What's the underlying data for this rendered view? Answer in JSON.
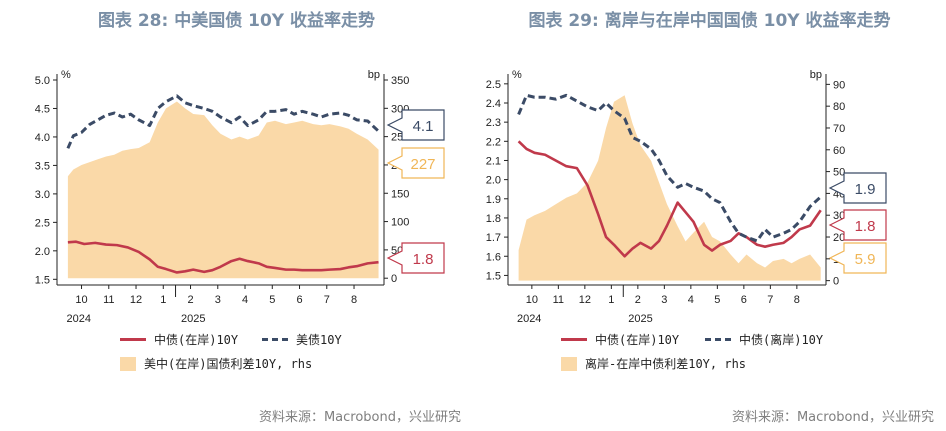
{
  "charts": [
    {
      "title": "图表 28: 中美国债 10Y 收益率走势",
      "source": "资料来源：Macrobond，兴业研究",
      "legend": [
        "中债(在岸)10Y",
        "美债10Y",
        "美中(在岸)国债利差10Y, rhs"
      ],
      "year_labels": [
        "2024",
        "2025"
      ]
    },
    {
      "title": "图表 29: 离岸与在岸中国国债 10Y 收益率走势",
      "source": "资料来源：Macrobond，兴业研究",
      "legend": [
        "中债(在岸)10Y",
        "中债(离岸)10Y",
        "离岸-在岸中债利差10Y, rhs"
      ],
      "year_labels": [
        "2024",
        "2025"
      ]
    }
  ],
  "chart_data": [
    {
      "type": "line",
      "title": "图表 28: 中美国债 10Y 收益率走势",
      "x_tick_labels": [
        "10",
        "11",
        "12",
        "1",
        "2",
        "3",
        "4",
        "5",
        "6",
        "7",
        "8"
      ],
      "y_left": {
        "unit": "%",
        "ticks": [
          "1.5",
          "2.0",
          "2.5",
          "3.0",
          "3.5",
          "4.0",
          "4.5",
          "5.0"
        ],
        "lim": [
          1.4,
          5.0
        ]
      },
      "y_right": {
        "unit": "bp",
        "ticks": [
          "0",
          "50",
          "100",
          "150",
          "200",
          "250",
          "300",
          "350"
        ],
        "lim": [
          -12,
          350
        ]
      },
      "series": [
        {
          "name": "中债(在岸)10Y",
          "style": "solid",
          "color": "#c0394b",
          "axis": "left",
          "x": [
            9.0,
            9.3,
            9.6,
            10.0,
            10.4,
            10.8,
            11.2,
            11.6,
            12.0,
            12.3,
            12.6,
            13.0,
            13.3,
            13.6,
            14.0,
            14.3,
            14.6,
            15.0,
            15.3,
            15.6,
            16.0,
            16.3,
            16.6,
            17.0,
            17.3,
            17.6,
            18.0,
            18.3,
            18.6,
            19.0,
            19.3,
            19.6,
            20.0,
            20.4
          ],
          "values": [
            2.15,
            2.16,
            2.12,
            2.14,
            2.11,
            2.1,
            2.06,
            1.98,
            1.85,
            1.72,
            1.68,
            1.62,
            1.64,
            1.67,
            1.63,
            1.66,
            1.72,
            1.82,
            1.86,
            1.82,
            1.78,
            1.72,
            1.7,
            1.67,
            1.67,
            1.66,
            1.66,
            1.66,
            1.67,
            1.68,
            1.71,
            1.73,
            1.78,
            1.8
          ],
          "label": "1.8"
        },
        {
          "name": "美债10Y",
          "style": "dashed",
          "color": "#3b4b66",
          "axis": "left",
          "x": [
            9.0,
            9.2,
            9.5,
            9.8,
            10.1,
            10.4,
            10.7,
            11.0,
            11.3,
            11.6,
            12.0,
            12.3,
            12.6,
            13.0,
            13.3,
            13.6,
            14.0,
            14.3,
            14.6,
            15.0,
            15.3,
            15.6,
            16.0,
            16.3,
            16.6,
            17.0,
            17.3,
            17.6,
            18.0,
            18.3,
            18.6,
            19.0,
            19.3,
            19.6,
            20.0,
            20.4
          ],
          "values": [
            3.8,
            4.02,
            4.08,
            4.22,
            4.3,
            4.38,
            4.42,
            4.35,
            4.4,
            4.3,
            4.2,
            4.5,
            4.62,
            4.72,
            4.6,
            4.55,
            4.5,
            4.45,
            4.35,
            4.25,
            4.35,
            4.2,
            4.3,
            4.45,
            4.45,
            4.48,
            4.4,
            4.45,
            4.4,
            4.35,
            4.4,
            4.42,
            4.38,
            4.3,
            4.28,
            4.1
          ],
          "label": "4.1"
        },
        {
          "name": "美中(在岸)国债利差10Y, rhs",
          "style": "area",
          "color": "#fad9a8",
          "axis": "right",
          "x": [
            9.0,
            9.2,
            9.5,
            9.8,
            10.1,
            10.4,
            10.7,
            11.0,
            11.3,
            11.6,
            12.0,
            12.3,
            12.6,
            13.0,
            13.3,
            13.6,
            14.0,
            14.3,
            14.6,
            15.0,
            15.3,
            15.6,
            16.0,
            16.3,
            16.6,
            17.0,
            17.3,
            17.6,
            18.0,
            18.3,
            18.6,
            19.0,
            19.3,
            19.6,
            20.0,
            20.4
          ],
          "values": [
            180,
            192,
            200,
            205,
            210,
            215,
            218,
            225,
            228,
            230,
            240,
            275,
            300,
            312,
            300,
            290,
            288,
            270,
            255,
            245,
            250,
            245,
            252,
            275,
            278,
            272,
            275,
            278,
            272,
            270,
            272,
            268,
            264,
            255,
            245,
            227
          ],
          "label": "227"
        }
      ]
    },
    {
      "type": "line",
      "title": "图表 29: 离岸与在岸中国国债 10Y 收益率走势",
      "x_tick_labels": [
        "10",
        "11",
        "12",
        "1",
        "2",
        "3",
        "4",
        "5",
        "6",
        "7",
        "8"
      ],
      "y_left": {
        "unit": "%",
        "ticks": [
          "1.5",
          "1.6",
          "1.7",
          "1.8",
          "1.9",
          "2.0",
          "2.1",
          "2.2",
          "2.3",
          "2.4",
          "2.5"
        ],
        "lim": [
          1.45,
          2.52
        ]
      },
      "y_right": {
        "unit": "bp",
        "ticks": [
          "0",
          "10",
          "20",
          "30",
          "40",
          "50",
          "60",
          "70",
          "80",
          "90"
        ],
        "lim": [
          -2,
          92
        ]
      },
      "series": [
        {
          "name": "中债(在岸)10Y",
          "style": "solid",
          "color": "#c0394b",
          "axis": "left",
          "x": [
            9.0,
            9.3,
            9.6,
            10.0,
            10.4,
            10.8,
            11.2,
            11.6,
            12.0,
            12.3,
            12.6,
            13.0,
            13.3,
            13.6,
            14.0,
            14.3,
            14.6,
            15.0,
            15.3,
            15.6,
            16.0,
            16.3,
            16.6,
            17.0,
            17.3,
            17.6,
            18.0,
            18.3,
            18.6,
            19.0,
            19.3,
            19.6,
            20.0,
            20.4
          ],
          "values": [
            2.2,
            2.16,
            2.14,
            2.13,
            2.1,
            2.07,
            2.06,
            1.97,
            1.82,
            1.7,
            1.66,
            1.6,
            1.64,
            1.67,
            1.64,
            1.68,
            1.76,
            1.88,
            1.83,
            1.78,
            1.66,
            1.63,
            1.66,
            1.68,
            1.72,
            1.7,
            1.66,
            1.65,
            1.66,
            1.67,
            1.7,
            1.74,
            1.76,
            1.84
          ],
          "label": "1.8"
        },
        {
          "name": "中债(离岸)10Y",
          "style": "dashed",
          "color": "#3b4b66",
          "axis": "left",
          "x": [
            9.0,
            9.3,
            9.6,
            10.0,
            10.4,
            10.8,
            11.2,
            11.6,
            12.0,
            12.3,
            12.6,
            13.0,
            13.3,
            13.6,
            14.0,
            14.3,
            14.6,
            15.0,
            15.3,
            15.6,
            16.0,
            16.3,
            16.6,
            17.0,
            17.3,
            17.6,
            18.0,
            18.3,
            18.6,
            19.0,
            19.3,
            19.6,
            20.0,
            20.4
          ],
          "values": [
            2.34,
            2.44,
            2.43,
            2.43,
            2.42,
            2.44,
            2.41,
            2.38,
            2.36,
            2.4,
            2.36,
            2.32,
            2.22,
            2.2,
            2.16,
            2.1,
            2.02,
            1.96,
            1.98,
            1.96,
            1.94,
            1.9,
            1.88,
            1.78,
            1.72,
            1.7,
            1.68,
            1.74,
            1.7,
            1.72,
            1.74,
            1.78,
            1.86,
            1.91
          ],
          "label": "1.9"
        },
        {
          "name": "离岸-在岸中债利差10Y, rhs",
          "style": "area",
          "color": "#fad9a8",
          "axis": "right",
          "x": [
            9.0,
            9.3,
            9.6,
            10.0,
            10.4,
            10.8,
            11.2,
            11.6,
            12.0,
            12.3,
            12.6,
            13.0,
            13.3,
            13.6,
            14.0,
            14.3,
            14.6,
            15.0,
            15.3,
            15.6,
            16.0,
            16.3,
            16.6,
            17.0,
            17.3,
            17.6,
            18.0,
            18.3,
            18.6,
            19.0,
            19.3,
            19.6,
            20.0,
            20.4
          ],
          "values": [
            14,
            28,
            30,
            32,
            35,
            38,
            40,
            45,
            55,
            70,
            82,
            85,
            72,
            62,
            55,
            45,
            35,
            25,
            18,
            22,
            27,
            20,
            18,
            12,
            8,
            12,
            8,
            6,
            9,
            10,
            8,
            10,
            12,
            6
          ],
          "label": "5.9"
        }
      ]
    }
  ]
}
